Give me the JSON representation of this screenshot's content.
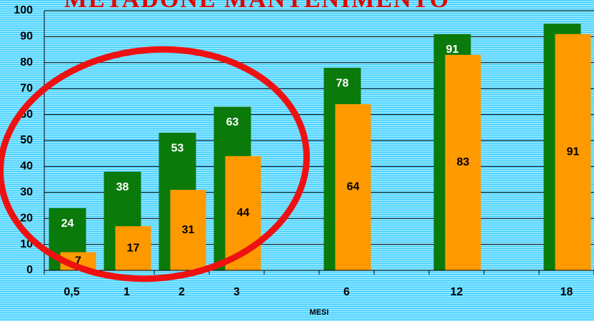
{
  "chart_data": {
    "type": "bar",
    "title": "METADONE MANTENIMENTO",
    "x_label": "MESI",
    "categories": [
      "0,5",
      "1",
      "2",
      "3",
      null,
      "6",
      null,
      "12",
      null,
      "18"
    ],
    "series": [
      {
        "color": "#0a7a0a",
        "values": [
          24,
          38,
          53,
          63,
          null,
          78,
          null,
          91,
          null,
          95
        ]
      },
      {
        "color": "#ff9900",
        "values": [
          7,
          17,
          31,
          44,
          null,
          64,
          null,
          83,
          null,
          91
        ]
      }
    ],
    "ylim": [
      0,
      100
    ],
    "yticks": [
      0,
      10,
      20,
      30,
      40,
      50,
      60,
      70,
      80,
      90,
      100
    ],
    "grid": true
  }
}
